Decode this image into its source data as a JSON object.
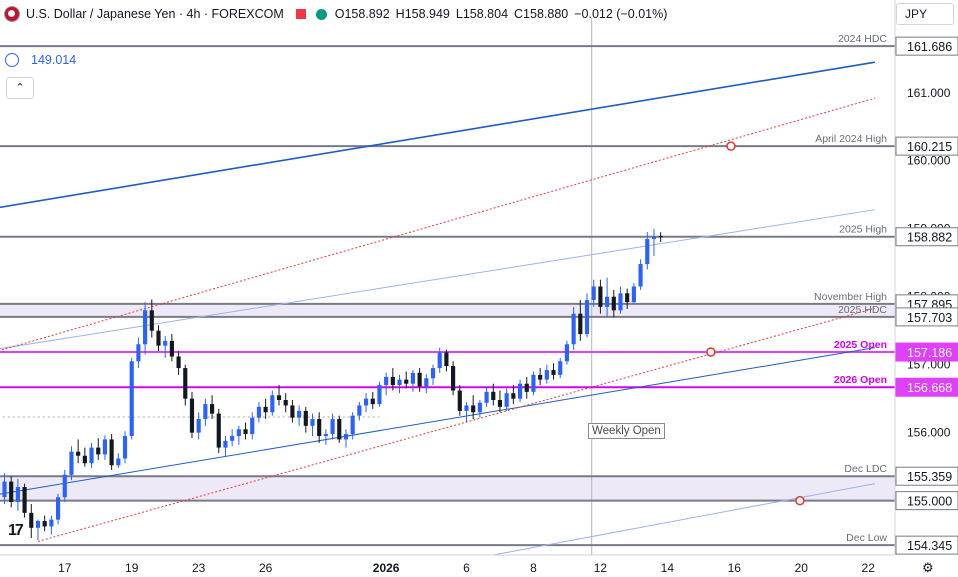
{
  "header": {
    "title": "U.S. Dollar / Japanese Yen · 4h · FOREXCOM",
    "open": "O158.892",
    "high": "H158.949",
    "low": "L158.804",
    "close": "C158.880",
    "change": "−0.012 (−0.01%)"
  },
  "indicator": {
    "value": "149.014"
  },
  "currency": "JPY",
  "weekly_open_label": "Weekly Open",
  "colors": {
    "up": "#2962ff",
    "down": "#131722",
    "magenta": "#e040fb",
    "channel": "#1e5bc6",
    "redline": "#e53935",
    "zone": "rgba(149,117,205,0.16)"
  },
  "chart_data": {
    "type": "candlestick",
    "title": "U.S. Dollar / Japanese Yen · 4h · FOREXCOM",
    "ylim": [
      154.2,
      162.1
    ],
    "xlim": [
      -1,
      121
    ],
    "x_tick_labels": [
      {
        "x": 9,
        "label": "17"
      },
      {
        "x": 19,
        "label": "19"
      },
      {
        "x": 29,
        "label": "23"
      },
      {
        "x": 39,
        "label": "26"
      },
      {
        "x": 57,
        "label": "2026"
      },
      {
        "x": 69,
        "label": "6"
      },
      {
        "x": 79,
        "label": "8"
      },
      {
        "x": 89,
        "label": "12"
      },
      {
        "x": 99,
        "label": "14"
      },
      {
        "x": 109,
        "label": "16"
      },
      {
        "x": 119,
        "label": "20"
      },
      {
        "x": 129,
        "label": "22"
      }
    ],
    "y_ticks": [
      {
        "value": 161.0,
        "label": "161.000"
      },
      {
        "value": 160.0,
        "label": "160.000"
      },
      {
        "value": 159.0,
        "label": "159.000"
      },
      {
        "value": 158.0,
        "label": "158.000"
      },
      {
        "value": 157.0,
        "label": "157.000"
      },
      {
        "value": 156.0,
        "label": "156.000"
      }
    ],
    "levels": [
      {
        "value": 161.686,
        "label": "161.686",
        "name": "2024 HDC",
        "color": "#787b86",
        "width": 2,
        "tag": "grey"
      },
      {
        "value": 160.215,
        "label": "160.215",
        "name": "April 2024 High",
        "color": "#787b86",
        "width": 2,
        "tag": "grey"
      },
      {
        "value": 158.882,
        "label": "158.882",
        "name": "2025 High",
        "color": "#787b86",
        "width": 2,
        "tag": "grey"
      },
      {
        "value": 157.895,
        "label": "157.895",
        "name": "November High",
        "color": "#787b86",
        "width": 2,
        "tag": "grey"
      },
      {
        "value": 157.703,
        "label": "157.703",
        "name": "2025 HDC",
        "color": "#787b86",
        "width": 2,
        "tag": "grey"
      },
      {
        "value": 157.186,
        "label": "157.186",
        "name": "2025 Open",
        "color": "#e040fb",
        "width": 2,
        "tag": "magenta"
      },
      {
        "value": 156.668,
        "label": "156.668",
        "name": "2026 Open",
        "color": "#d500f9",
        "width": 2,
        "tag": "magenta"
      },
      {
        "value": 155.359,
        "label": "155.359",
        "name": "Dec LDC",
        "color": "#787b86",
        "width": 2,
        "tag": "grey"
      },
      {
        "value": 155.0,
        "label": "155.000",
        "name": "",
        "color": "#787b86",
        "width": 2,
        "tag": "grey"
      },
      {
        "value": 154.345,
        "label": "154.345",
        "name": "Dec Low",
        "color": "#787b86",
        "width": 2,
        "tag": "grey"
      }
    ],
    "zones": [
      {
        "from": 157.703,
        "to": 157.895
      },
      {
        "from": 155.0,
        "to": 155.359
      }
    ],
    "trendlines": [
      {
        "x1": -1,
        "y1": 159.31,
        "x2": 130,
        "y2": 161.45,
        "color": "#1e5bc6",
        "width": 1.6,
        "dash": "none"
      },
      {
        "x1": -1,
        "y1": 157.23,
        "x2": 130,
        "y2": 159.28,
        "color": "#9bb4e8",
        "width": 1,
        "dash": "none"
      },
      {
        "x1": -1,
        "y1": 155.09,
        "x2": 130,
        "y2": 157.25,
        "color": "#1e5bc6",
        "width": 1,
        "dash": "none"
      },
      {
        "x1": -1,
        "y1": 157.2,
        "x2": 130,
        "y2": 160.92,
        "color": "#e53935",
        "width": 1,
        "dash": "2,2"
      },
      {
        "x1": 5,
        "y1": 154.4,
        "x2": 130,
        "y2": 157.83,
        "color": "#e53935",
        "width": 1,
        "dash": "2,2"
      },
      {
        "x1": 73,
        "y1": 154.2,
        "x2": 130,
        "y2": 155.25,
        "color": "#9bb4e8",
        "width": 1,
        "dash": "none"
      }
    ],
    "markers": [
      {
        "x": 108.5,
        "value": 160.215
      },
      {
        "x": 105.5,
        "value": 157.186
      },
      {
        "x": 118.8,
        "value": 155.0
      }
    ],
    "weekly_open_line": {
      "x": 87.7
    },
    "mid_dotted": {
      "value": 156.23,
      "x1": -1,
      "x2": 56
    },
    "candles": [
      {
        "o": 155.05,
        "h": 155.4,
        "l": 154.95,
        "c": 155.28
      },
      {
        "o": 155.28,
        "h": 155.36,
        "l": 154.9,
        "c": 154.98
      },
      {
        "o": 154.98,
        "h": 155.32,
        "l": 154.85,
        "c": 155.2
      },
      {
        "o": 155.2,
        "h": 155.25,
        "l": 154.75,
        "c": 154.82
      },
      {
        "o": 154.82,
        "h": 154.95,
        "l": 154.45,
        "c": 154.6
      },
      {
        "o": 154.6,
        "h": 154.72,
        "l": 154.42,
        "c": 154.7
      },
      {
        "o": 154.7,
        "h": 154.78,
        "l": 154.55,
        "c": 154.62
      },
      {
        "o": 154.62,
        "h": 154.78,
        "l": 154.5,
        "c": 154.72
      },
      {
        "o": 154.72,
        "h": 155.1,
        "l": 154.65,
        "c": 155.05
      },
      {
        "o": 155.05,
        "h": 155.45,
        "l": 154.98,
        "c": 155.38
      },
      {
        "o": 155.38,
        "h": 155.8,
        "l": 155.3,
        "c": 155.72
      },
      {
        "o": 155.72,
        "h": 155.9,
        "l": 155.55,
        "c": 155.66
      },
      {
        "o": 155.66,
        "h": 155.78,
        "l": 155.5,
        "c": 155.55
      },
      {
        "o": 155.55,
        "h": 155.85,
        "l": 155.48,
        "c": 155.78
      },
      {
        "o": 155.78,
        "h": 155.92,
        "l": 155.6,
        "c": 155.68
      },
      {
        "o": 155.68,
        "h": 155.96,
        "l": 155.6,
        "c": 155.9
      },
      {
        "o": 155.9,
        "h": 155.98,
        "l": 155.45,
        "c": 155.52
      },
      {
        "o": 155.52,
        "h": 155.7,
        "l": 155.48,
        "c": 155.62
      },
      {
        "o": 155.62,
        "h": 156.02,
        "l": 155.55,
        "c": 155.95
      },
      {
        "o": 155.95,
        "h": 157.1,
        "l": 155.9,
        "c": 157.05
      },
      {
        "o": 157.05,
        "h": 157.4,
        "l": 156.95,
        "c": 157.3
      },
      {
        "o": 157.3,
        "h": 157.92,
        "l": 157.15,
        "c": 157.8
      },
      {
        "o": 157.8,
        "h": 157.96,
        "l": 157.4,
        "c": 157.5
      },
      {
        "o": 157.5,
        "h": 157.58,
        "l": 157.2,
        "c": 157.28
      },
      {
        "o": 157.28,
        "h": 157.42,
        "l": 157.1,
        "c": 157.35
      },
      {
        "o": 157.35,
        "h": 157.45,
        "l": 157.05,
        "c": 157.12
      },
      {
        "o": 157.12,
        "h": 157.2,
        "l": 156.85,
        "c": 156.95
      },
      {
        "o": 156.95,
        "h": 157.0,
        "l": 156.4,
        "c": 156.5
      },
      {
        "o": 156.5,
        "h": 156.6,
        "l": 155.92,
        "c": 156.0
      },
      {
        "o": 156.0,
        "h": 156.3,
        "l": 155.9,
        "c": 156.2
      },
      {
        "o": 156.2,
        "h": 156.5,
        "l": 156.1,
        "c": 156.42
      },
      {
        "o": 156.42,
        "h": 156.55,
        "l": 156.2,
        "c": 156.28
      },
      {
        "o": 156.28,
        "h": 156.35,
        "l": 155.7,
        "c": 155.78
      },
      {
        "o": 155.78,
        "h": 155.95,
        "l": 155.65,
        "c": 155.88
      },
      {
        "o": 155.88,
        "h": 156.05,
        "l": 155.8,
        "c": 155.95
      },
      {
        "o": 155.95,
        "h": 156.1,
        "l": 155.82,
        "c": 156.05
      },
      {
        "o": 156.05,
        "h": 156.15,
        "l": 155.9,
        "c": 155.98
      },
      {
        "o": 155.98,
        "h": 156.3,
        "l": 155.9,
        "c": 156.22
      },
      {
        "o": 156.22,
        "h": 156.45,
        "l": 156.15,
        "c": 156.38
      },
      {
        "o": 156.38,
        "h": 156.5,
        "l": 156.2,
        "c": 156.3
      },
      {
        "o": 156.3,
        "h": 156.62,
        "l": 156.25,
        "c": 156.55
      },
      {
        "o": 156.55,
        "h": 156.7,
        "l": 156.4,
        "c": 156.48
      },
      {
        "o": 156.48,
        "h": 156.58,
        "l": 156.3,
        "c": 156.4
      },
      {
        "o": 156.4,
        "h": 156.48,
        "l": 156.15,
        "c": 156.22
      },
      {
        "o": 156.22,
        "h": 156.4,
        "l": 156.1,
        "c": 156.32
      },
      {
        "o": 156.32,
        "h": 156.38,
        "l": 156.0,
        "c": 156.1
      },
      {
        "o": 156.1,
        "h": 156.28,
        "l": 155.95,
        "c": 156.2
      },
      {
        "o": 156.2,
        "h": 156.3,
        "l": 155.85,
        "c": 155.95
      },
      {
        "o": 155.95,
        "h": 156.05,
        "l": 155.82,
        "c": 155.98
      },
      {
        "o": 155.98,
        "h": 156.28,
        "l": 155.9,
        "c": 156.2
      },
      {
        "o": 156.2,
        "h": 156.25,
        "l": 155.85,
        "c": 155.9
      },
      {
        "o": 155.9,
        "h": 156.05,
        "l": 155.78,
        "c": 155.98
      },
      {
        "o": 155.98,
        "h": 156.3,
        "l": 155.9,
        "c": 156.25
      },
      {
        "o": 156.25,
        "h": 156.45,
        "l": 156.18,
        "c": 156.4
      },
      {
        "o": 156.4,
        "h": 156.58,
        "l": 156.3,
        "c": 156.5
      },
      {
        "o": 156.5,
        "h": 156.6,
        "l": 156.35,
        "c": 156.42
      },
      {
        "o": 156.42,
        "h": 156.75,
        "l": 156.38,
        "c": 156.7
      },
      {
        "o": 156.7,
        "h": 156.88,
        "l": 156.55,
        "c": 156.82
      },
      {
        "o": 156.82,
        "h": 156.95,
        "l": 156.62,
        "c": 156.7
      },
      {
        "o": 156.7,
        "h": 156.85,
        "l": 156.58,
        "c": 156.78
      },
      {
        "o": 156.78,
        "h": 156.9,
        "l": 156.65,
        "c": 156.72
      },
      {
        "o": 156.72,
        "h": 156.92,
        "l": 156.6,
        "c": 156.88
      },
      {
        "o": 156.88,
        "h": 156.95,
        "l": 156.6,
        "c": 156.68
      },
      {
        "o": 156.68,
        "h": 156.86,
        "l": 156.58,
        "c": 156.8
      },
      {
        "o": 156.8,
        "h": 157.0,
        "l": 156.7,
        "c": 156.95
      },
      {
        "o": 156.95,
        "h": 157.25,
        "l": 156.88,
        "c": 157.18
      },
      {
        "o": 157.18,
        "h": 157.22,
        "l": 156.9,
        "c": 156.98
      },
      {
        "o": 156.98,
        "h": 157.05,
        "l": 156.55,
        "c": 156.62
      },
      {
        "o": 156.62,
        "h": 156.7,
        "l": 156.25,
        "c": 156.32
      },
      {
        "o": 156.32,
        "h": 156.45,
        "l": 156.15,
        "c": 156.4
      },
      {
        "o": 156.4,
        "h": 156.55,
        "l": 156.2,
        "c": 156.3
      },
      {
        "o": 156.3,
        "h": 156.48,
        "l": 156.22,
        "c": 156.44
      },
      {
        "o": 156.44,
        "h": 156.68,
        "l": 156.38,
        "c": 156.6
      },
      {
        "o": 156.6,
        "h": 156.72,
        "l": 156.4,
        "c": 156.48
      },
      {
        "o": 156.48,
        "h": 156.62,
        "l": 156.3,
        "c": 156.38
      },
      {
        "o": 156.38,
        "h": 156.65,
        "l": 156.32,
        "c": 156.58
      },
      {
        "o": 156.58,
        "h": 156.7,
        "l": 156.42,
        "c": 156.5
      },
      {
        "o": 156.5,
        "h": 156.78,
        "l": 156.45,
        "c": 156.72
      },
      {
        "o": 156.72,
        "h": 156.82,
        "l": 156.5,
        "c": 156.6
      },
      {
        "o": 156.6,
        "h": 156.9,
        "l": 156.55,
        "c": 156.85
      },
      {
        "o": 156.85,
        "h": 156.95,
        "l": 156.7,
        "c": 156.78
      },
      {
        "o": 156.78,
        "h": 157.0,
        "l": 156.72,
        "c": 156.92
      },
      {
        "o": 156.92,
        "h": 157.02,
        "l": 156.78,
        "c": 156.85
      },
      {
        "o": 156.85,
        "h": 157.1,
        "l": 156.8,
        "c": 157.05
      },
      {
        "o": 157.05,
        "h": 157.35,
        "l": 157.0,
        "c": 157.3
      },
      {
        "o": 157.3,
        "h": 157.85,
        "l": 157.22,
        "c": 157.75
      },
      {
        "o": 157.75,
        "h": 157.95,
        "l": 157.35,
        "c": 157.45
      },
      {
        "o": 157.45,
        "h": 158.05,
        "l": 157.4,
        "c": 157.95
      },
      {
        "o": 157.95,
        "h": 158.25,
        "l": 157.85,
        "c": 158.15
      },
      {
        "o": 158.15,
        "h": 158.25,
        "l": 157.75,
        "c": 157.85
      },
      {
        "o": 157.85,
        "h": 158.28,
        "l": 157.7,
        "c": 158.0
      },
      {
        "o": 158.0,
        "h": 158.1,
        "l": 157.7,
        "c": 157.8
      },
      {
        "o": 157.8,
        "h": 158.15,
        "l": 157.75,
        "c": 158.05
      },
      {
        "o": 158.05,
        "h": 158.12,
        "l": 157.82,
        "c": 157.92
      },
      {
        "o": 157.92,
        "h": 158.2,
        "l": 157.9,
        "c": 158.15
      },
      {
        "o": 158.15,
        "h": 158.55,
        "l": 158.1,
        "c": 158.48
      },
      {
        "o": 158.48,
        "h": 158.95,
        "l": 158.4,
        "c": 158.85
      },
      {
        "o": 158.85,
        "h": 159.0,
        "l": 158.6,
        "c": 158.88
      },
      {
        "o": 158.892,
        "h": 158.949,
        "l": 158.804,
        "c": 158.88
      }
    ]
  }
}
